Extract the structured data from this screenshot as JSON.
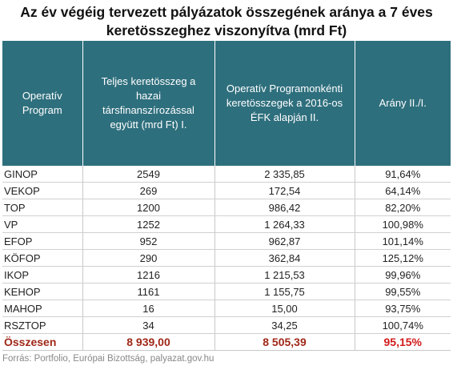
{
  "title_line1": "Az év végéig tervezett pályázatok összegének aránya a 7 éves",
  "title_line2": "keretösszeghez viszonyítva (mrd Ft)",
  "headers": {
    "col1": "Operatív Program",
    "col2": "Teljes keretösszeg a hazai társfinanszírozással együtt (mrd Ft) I.",
    "col3": "Operatív Programonkénti keretösszegek a 2016-os ÉFK alapján II.",
    "col4": "Arány II./I."
  },
  "rows": [
    {
      "name": "GINOP",
      "total": "2549",
      "efk": "2 335,85",
      "ratio": "91,64%"
    },
    {
      "name": "VEKOP",
      "total": "269",
      "efk": "172,54",
      "ratio": "64,14%"
    },
    {
      "name": "TOP",
      "total": "1200",
      "efk": "986,42",
      "ratio": "82,20%"
    },
    {
      "name": "VP",
      "total": "1252",
      "efk": "1 264,33",
      "ratio": "100,98%"
    },
    {
      "name": "EFOP",
      "total": "952",
      "efk": "962,87",
      "ratio": "101,14%"
    },
    {
      "name": "KÖFOP",
      "total": "290",
      "efk": "362,84",
      "ratio": "125,12%"
    },
    {
      "name": "IKOP",
      "total": "1216",
      "efk": "1 215,53",
      "ratio": "99,96%"
    },
    {
      "name": "KEHOP",
      "total": "1161",
      "efk": "1 155,75",
      "ratio": "99,55%"
    },
    {
      "name": "MAHOP",
      "total": "16",
      "efk": "15,00",
      "ratio": "93,75%"
    },
    {
      "name": "RSZTOP",
      "total": "34",
      "efk": "34,25",
      "ratio": "100,74%"
    }
  ],
  "totals": {
    "name": "Összesen",
    "total": "8 939,00",
    "efk": "8 505,39",
    "ratio": "95,15%"
  },
  "source": "Forrás: Portfolio, Európai Bizottság, palyazat.gov.hu",
  "colors": {
    "header_bg": "#2e6f7d",
    "total_text": "#a02818",
    "total_ratio": "#d21a1a"
  }
}
